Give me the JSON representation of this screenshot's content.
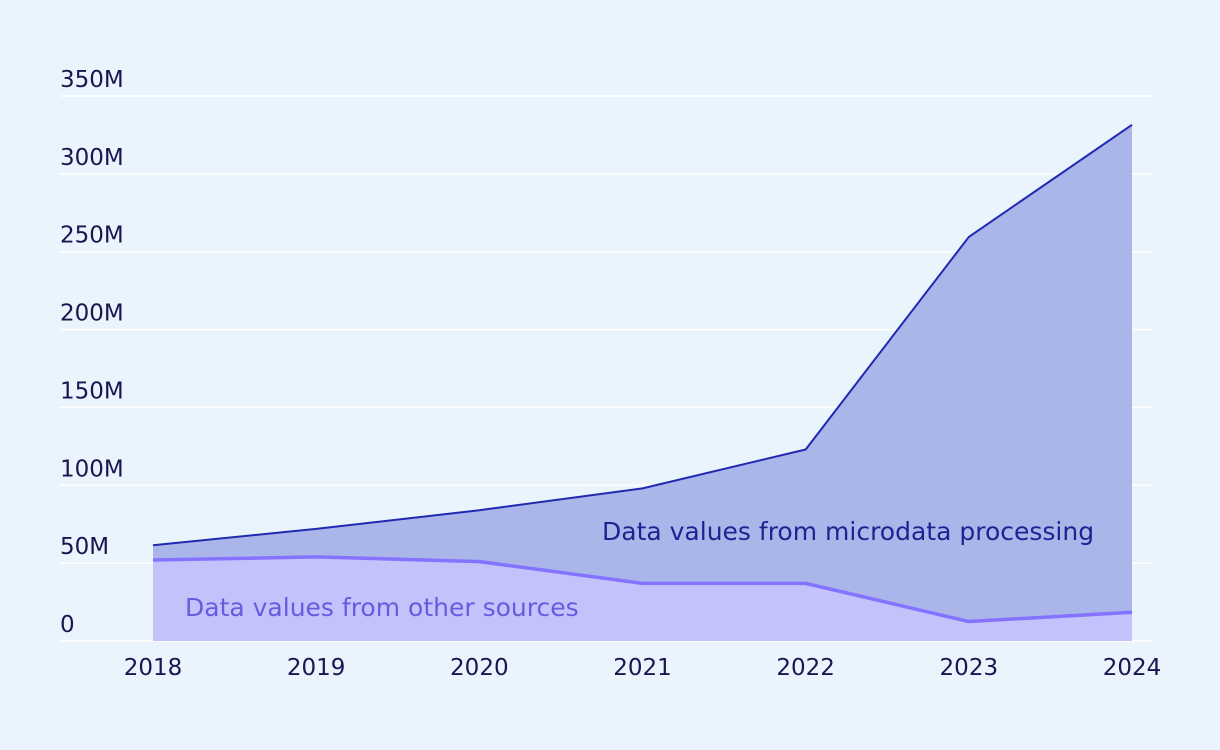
{
  "chart_data": {
    "type": "area",
    "stacked": true,
    "title": "",
    "xlabel": "",
    "ylabel": "",
    "x": [
      "2018",
      "2019",
      "2020",
      "2021",
      "2022",
      "2023",
      "2024"
    ],
    "ylim": [
      0,
      350000000
    ],
    "yticks": [
      0,
      50000000,
      100000000,
      150000000,
      200000000,
      250000000,
      300000000,
      350000000
    ],
    "ytick_labels": [
      "0",
      "50M",
      "100M",
      "150M",
      "200M",
      "250M",
      "300M",
      "350M"
    ],
    "grid": true,
    "legend": "inline labels",
    "series": [
      {
        "name": "Data values from other sources",
        "values": [
          52000000,
          54000000,
          51000000,
          37000000,
          37000000,
          12500000,
          18500000
        ],
        "line_color": "#8572ff",
        "fill_color": "#c3c2fb",
        "label_color": "#6a5ae0"
      },
      {
        "name": "Data values from microdata processing",
        "values": [
          9500000,
          18000000,
          33000000,
          61000000,
          86000000,
          247000000,
          313000000
        ],
        "line_color": "#2129b0",
        "fill_color": "#aab6ea",
        "label_color": "#1d2391"
      }
    ]
  }
}
